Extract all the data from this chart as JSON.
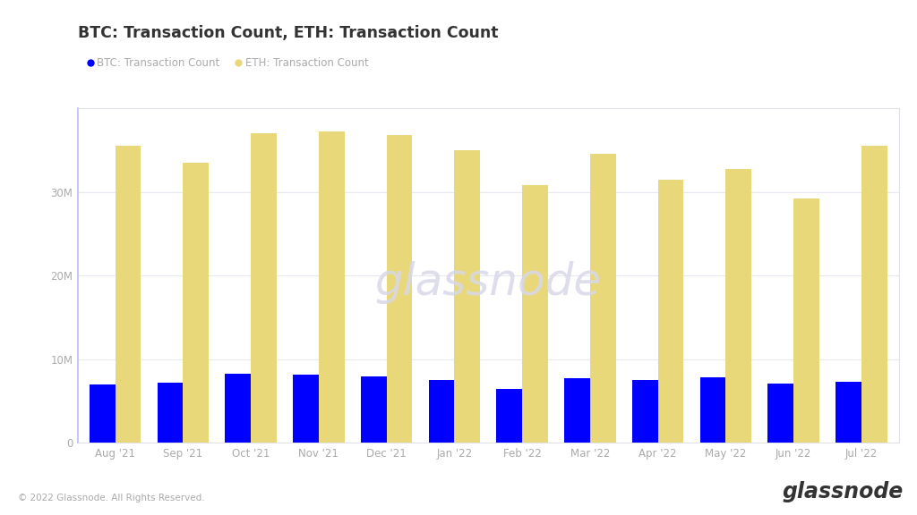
{
  "title": "BTC: Transaction Count, ETH: Transaction Count",
  "categories": [
    "Aug '21",
    "Sep '21",
    "Oct '21",
    "Nov '21",
    "Dec '21",
    "Jan '22",
    "Feb '22",
    "Mar '22",
    "Apr '22",
    "May '22",
    "Jun '22",
    "Jul '22"
  ],
  "btc_values": [
    7000000,
    7200000,
    8300000,
    8200000,
    7900000,
    7500000,
    6400000,
    7700000,
    7500000,
    7800000,
    7100000,
    7300000
  ],
  "eth_values": [
    35500000,
    33500000,
    37000000,
    37200000,
    36800000,
    35000000,
    30800000,
    34500000,
    31500000,
    32700000,
    29200000,
    35500000
  ],
  "btc_color": "#0000ff",
  "eth_color": "#e8d87a",
  "btc_label": "BTC: Transaction Count",
  "eth_label": "ETH: Transaction Count",
  "ylim": [
    0,
    40000000
  ],
  "yticks": [
    0,
    10000000,
    20000000,
    30000000
  ],
  "ytick_labels": [
    "0",
    "10M",
    "20M",
    "30M"
  ],
  "background_color": "#ffffff",
  "chart_bg_color": "#ffffff",
  "grid_color": "#e8e8f0",
  "left_spine_color": "#c8c8f0",
  "footer_left": "© 2022 Glassnode. All Rights Reserved.",
  "footer_right": "glassnode",
  "watermark": "glassnode",
  "watermark_color": "#d8d8e8",
  "title_color": "#333333",
  "tick_color": "#aaaaaa",
  "chart_border_color": "#e0e0e8"
}
